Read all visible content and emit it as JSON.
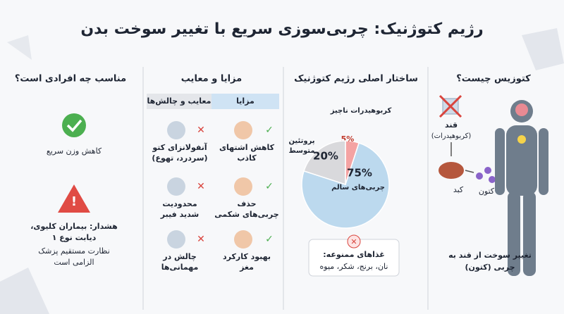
{
  "title": "رژیم کتوژنیک: چربی‌سوزی سریع با تغییر سوخت بدن",
  "ketosis": {
    "heading": "کتوزیس چیست؟",
    "sugar": [
      "قند",
      "(کربوهیدرات)"
    ],
    "liver": "کبد",
    "ketone": "کتون",
    "caption": [
      "تغییر سوخت از قند به",
      "چربی (کتون)"
    ]
  },
  "structure": {
    "heading": "ساختار اصلی رژیم کتوژنیک",
    "pie": {
      "slices": [
        {
          "name": [
            "کربوهیدرات ناچیز"
          ],
          "value": 5,
          "value_label": "5%",
          "color": "#f4a3a3"
        },
        {
          "name": [
            "چربی‌های سالم"
          ],
          "value": 75,
          "value_label": "75%",
          "color": "#bcd9ee"
        },
        {
          "name": [
            "پروتئین",
            "متوسط"
          ],
          "value": 20,
          "value_label": "20%",
          "color": "#d9d9dc"
        }
      ]
    },
    "forbidden": {
      "title": "غذاهای ممنوعه:",
      "items": "نان، برنج، شکر، میوه"
    }
  },
  "pros_cons": {
    "heading": "مزایا و معایب",
    "pros_tab": "مزایا",
    "cons_tab": "معایب و چالش‌ها",
    "pros": [
      [
        "کاهش اشتهای",
        "کاذب"
      ],
      [
        "حذف",
        "چربی‌های شکمی"
      ],
      [
        "بهبود کارکرد",
        "مغز"
      ]
    ],
    "cons": [
      [
        "آنفولانزای کتو",
        "(سردرد، تهوع)"
      ],
      [
        "محدودیت",
        "شدید فیبر"
      ],
      [
        "چالش در",
        "مهمانی‌ها"
      ]
    ]
  },
  "suitable": {
    "heading": "مناسب چه افرادی است؟",
    "good": "کاهش وزن سریع",
    "warning": [
      "هشدار: بیماران کلیوی،",
      "دیابت نوع ۱"
    ],
    "note": [
      "نظارت مستقیم پزشک",
      "الزامی است"
    ]
  }
}
